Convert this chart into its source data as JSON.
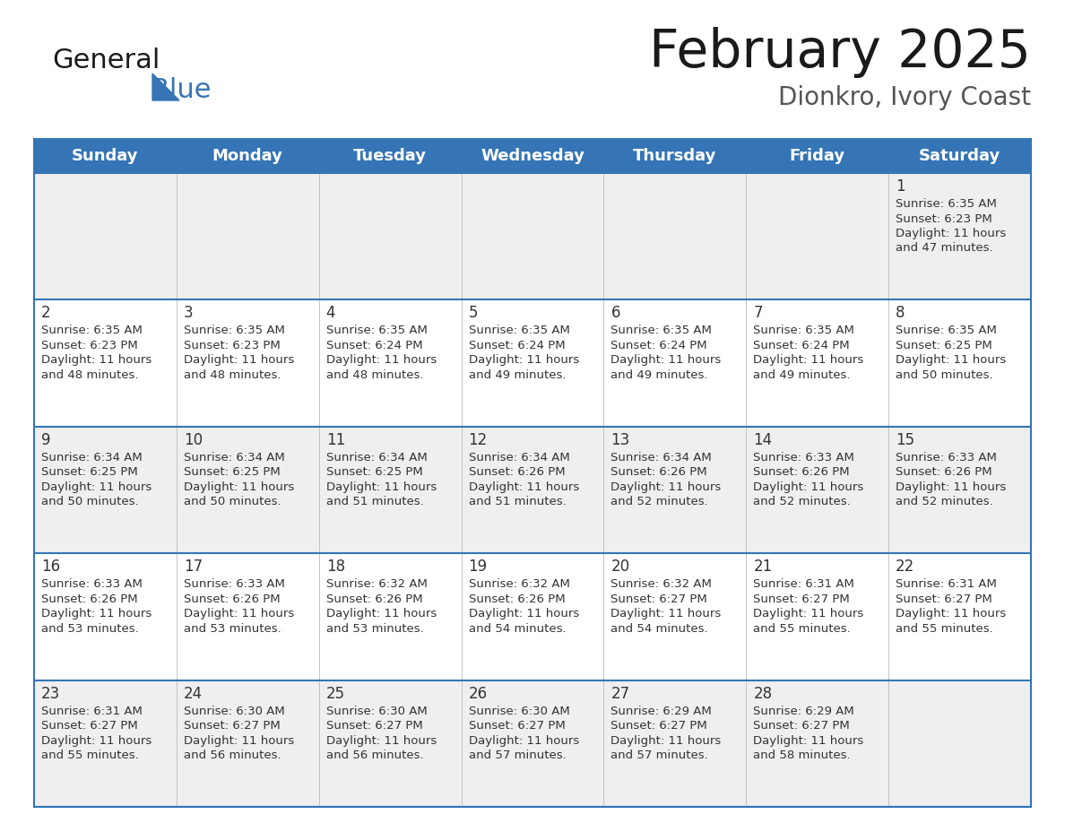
{
  "title": "February 2025",
  "subtitle": "Dionkro, Ivory Coast",
  "header_bg_color": "#3575b5",
  "header_text_color": "#ffffff",
  "row0_bg": "#efefef",
  "row1_bg": "#ffffff",
  "row2_bg": "#efefef",
  "row3_bg": "#ffffff",
  "row4_bg": "#efefef",
  "border_color": "#3575b5",
  "grid_line_color": "#3575b5",
  "day_headers": [
    "Sunday",
    "Monday",
    "Tuesday",
    "Wednesday",
    "Thursday",
    "Friday",
    "Saturday"
  ],
  "cell_data": [
    [
      null,
      null,
      null,
      null,
      null,
      null,
      {
        "day": "1",
        "sunrise": "6:35 AM",
        "sunset": "6:23 PM",
        "daylight": "11 hours",
        "daylight2": "and 47 minutes."
      }
    ],
    [
      {
        "day": "2",
        "sunrise": "6:35 AM",
        "sunset": "6:23 PM",
        "daylight": "11 hours",
        "daylight2": "and 48 minutes."
      },
      {
        "day": "3",
        "sunrise": "6:35 AM",
        "sunset": "6:23 PM",
        "daylight": "11 hours",
        "daylight2": "and 48 minutes."
      },
      {
        "day": "4",
        "sunrise": "6:35 AM",
        "sunset": "6:24 PM",
        "daylight": "11 hours",
        "daylight2": "and 48 minutes."
      },
      {
        "day": "5",
        "sunrise": "6:35 AM",
        "sunset": "6:24 PM",
        "daylight": "11 hours",
        "daylight2": "and 49 minutes."
      },
      {
        "day": "6",
        "sunrise": "6:35 AM",
        "sunset": "6:24 PM",
        "daylight": "11 hours",
        "daylight2": "and 49 minutes."
      },
      {
        "day": "7",
        "sunrise": "6:35 AM",
        "sunset": "6:24 PM",
        "daylight": "11 hours",
        "daylight2": "and 49 minutes."
      },
      {
        "day": "8",
        "sunrise": "6:35 AM",
        "sunset": "6:25 PM",
        "daylight": "11 hours",
        "daylight2": "and 50 minutes."
      }
    ],
    [
      {
        "day": "9",
        "sunrise": "6:34 AM",
        "sunset": "6:25 PM",
        "daylight": "11 hours",
        "daylight2": "and 50 minutes."
      },
      {
        "day": "10",
        "sunrise": "6:34 AM",
        "sunset": "6:25 PM",
        "daylight": "11 hours",
        "daylight2": "and 50 minutes."
      },
      {
        "day": "11",
        "sunrise": "6:34 AM",
        "sunset": "6:25 PM",
        "daylight": "11 hours",
        "daylight2": "and 51 minutes."
      },
      {
        "day": "12",
        "sunrise": "6:34 AM",
        "sunset": "6:26 PM",
        "daylight": "11 hours",
        "daylight2": "and 51 minutes."
      },
      {
        "day": "13",
        "sunrise": "6:34 AM",
        "sunset": "6:26 PM",
        "daylight": "11 hours",
        "daylight2": "and 52 minutes."
      },
      {
        "day": "14",
        "sunrise": "6:33 AM",
        "sunset": "6:26 PM",
        "daylight": "11 hours",
        "daylight2": "and 52 minutes."
      },
      {
        "day": "15",
        "sunrise": "6:33 AM",
        "sunset": "6:26 PM",
        "daylight": "11 hours",
        "daylight2": "and 52 minutes."
      }
    ],
    [
      {
        "day": "16",
        "sunrise": "6:33 AM",
        "sunset": "6:26 PM",
        "daylight": "11 hours",
        "daylight2": "and 53 minutes."
      },
      {
        "day": "17",
        "sunrise": "6:33 AM",
        "sunset": "6:26 PM",
        "daylight": "11 hours",
        "daylight2": "and 53 minutes."
      },
      {
        "day": "18",
        "sunrise": "6:32 AM",
        "sunset": "6:26 PM",
        "daylight": "11 hours",
        "daylight2": "and 53 minutes."
      },
      {
        "day": "19",
        "sunrise": "6:32 AM",
        "sunset": "6:26 PM",
        "daylight": "11 hours",
        "daylight2": "and 54 minutes."
      },
      {
        "day": "20",
        "sunrise": "6:32 AM",
        "sunset": "6:27 PM",
        "daylight": "11 hours",
        "daylight2": "and 54 minutes."
      },
      {
        "day": "21",
        "sunrise": "6:31 AM",
        "sunset": "6:27 PM",
        "daylight": "11 hours",
        "daylight2": "and 55 minutes."
      },
      {
        "day": "22",
        "sunrise": "6:31 AM",
        "sunset": "6:27 PM",
        "daylight": "11 hours",
        "daylight2": "and 55 minutes."
      }
    ],
    [
      {
        "day": "23",
        "sunrise": "6:31 AM",
        "sunset": "6:27 PM",
        "daylight": "11 hours",
        "daylight2": "and 55 minutes."
      },
      {
        "day": "24",
        "sunrise": "6:30 AM",
        "sunset": "6:27 PM",
        "daylight": "11 hours",
        "daylight2": "and 56 minutes."
      },
      {
        "day": "25",
        "sunrise": "6:30 AM",
        "sunset": "6:27 PM",
        "daylight": "11 hours",
        "daylight2": "and 56 minutes."
      },
      {
        "day": "26",
        "sunrise": "6:30 AM",
        "sunset": "6:27 PM",
        "daylight": "11 hours",
        "daylight2": "and 57 minutes."
      },
      {
        "day": "27",
        "sunrise": "6:29 AM",
        "sunset": "6:27 PM",
        "daylight": "11 hours",
        "daylight2": "and 57 minutes."
      },
      {
        "day": "28",
        "sunrise": "6:29 AM",
        "sunset": "6:27 PM",
        "daylight": "11 hours",
        "daylight2": "and 58 minutes."
      },
      null
    ]
  ],
  "logo_general_color": "#1a1a1a",
  "logo_blue_color": "#3575b5",
  "title_fontsize": 42,
  "subtitle_fontsize": 20,
  "header_fontsize": 13,
  "day_num_fontsize": 12,
  "cell_text_fontsize": 9.5,
  "row_bg_colors": [
    "#efefef",
    "#ffffff",
    "#efefef",
    "#ffffff",
    "#efefef"
  ]
}
